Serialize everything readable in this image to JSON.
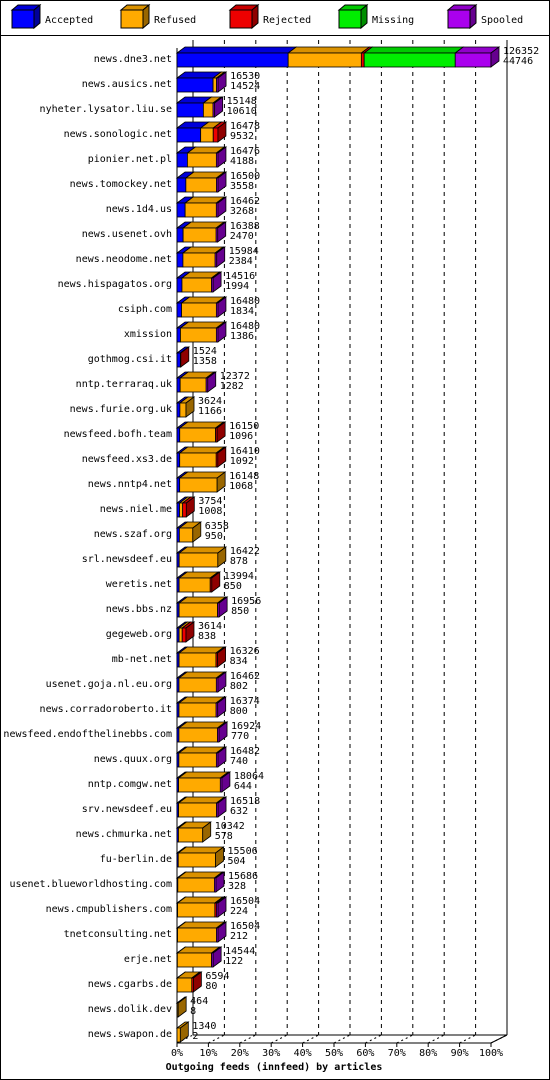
{
  "chart_data": {
    "type": "bar3d",
    "orientation": "horizontal",
    "stacked": true,
    "xlabel": "Outgoing feeds (innfeed) by articles",
    "categories": [
      "news.dne3.net",
      "news.ausics.net",
      "nyheter.lysator.liu.se",
      "news.sonologic.net",
      "pionier.net.pl",
      "news.tomockey.net",
      "news.1d4.us",
      "news.usenet.ovh",
      "news.neodome.net",
      "news.hispagatos.org",
      "csiph.com",
      "xmission",
      "gothmog.csi.it",
      "nntp.terraraq.uk",
      "news.furie.org.uk",
      "newsfeed.bofh.team",
      "newsfeed.xs3.de",
      "news.nntp4.net",
      "news.niel.me",
      "news.szaf.org",
      "srl.newsdeef.eu",
      "weretis.net",
      "news.bbs.nz",
      "gegeweb.org",
      "mb-net.net",
      "usenet.goja.nl.eu.org",
      "news.corradoroberto.it",
      "newsfeed.endofthelinebbs.com",
      "news.quux.org",
      "nntp.comgw.net",
      "srv.newsdeef.eu",
      "news.chmurka.net",
      "fu-berlin.de",
      "usenet.blueworldhosting.com",
      "news.cmpublishers.com",
      "tnetconsulting.net",
      "erje.net",
      "news.cgarbs.de",
      "news.dolik.dev",
      "news.swapon.de"
    ],
    "series": [
      {
        "name": "Accepted",
        "color": "#0000ff",
        "values": [
          35.41,
          11.49,
          8.4,
          7.54,
          3.31,
          2.82,
          2.59,
          1.95,
          1.89,
          1.58,
          1.45,
          1.1,
          1.07,
          1.01,
          0.92,
          0.87,
          0.86,
          0.85,
          0.8,
          0.75,
          0.69,
          0.67,
          0.67,
          0.66,
          0.66,
          0.63,
          0.63,
          0.61,
          0.59,
          0.51,
          0.5,
          0.46,
          0.4,
          0.26,
          0.18,
          0.17,
          0.1,
          0.06,
          0.01,
          0
        ]
      },
      {
        "name": "Refused",
        "color": "#ffaa00",
        "values": [
          23.3,
          1.09,
          3.09,
          4.0,
          9.23,
          9.74,
          9.94,
          10.52,
          10.26,
          9.41,
          11.09,
          11.44,
          0,
          8.28,
          1.95,
          11.41,
          11.63,
          11.93,
          1.0,
          4.28,
          12.31,
          9.91,
          12.25,
          1.0,
          11.76,
          11.9,
          11.83,
          12.28,
          11.95,
          13.29,
          12.07,
          7.73,
          11.87,
          11.65,
          11.88,
          12.39,
          10.91,
          4.66,
          0.36,
          1.06
        ]
      },
      {
        "name": "Rejected",
        "color": "#ee0000",
        "values": [
          0.9,
          0,
          0,
          1.5,
          0,
          0,
          0,
          0,
          0,
          0,
          0,
          0,
          0.14,
          0,
          0,
          0.5,
          0.5,
          0,
          1.17,
          0,
          0,
          0.5,
          0,
          1.2,
          0.5,
          0,
          0,
          0,
          0,
          0,
          0,
          0,
          0,
          0,
          0.5,
          0,
          0,
          0.5,
          0,
          0
        ]
      },
      {
        "name": "Missing",
        "color": "#00ee00",
        "values": [
          29.0,
          0,
          0,
          0,
          0,
          0,
          0,
          0,
          0,
          0,
          0,
          0,
          0,
          0,
          0,
          0,
          0,
          0,
          0,
          0,
          0,
          0,
          0,
          0,
          0,
          0,
          0,
          0,
          0,
          0,
          0,
          0,
          0,
          0,
          0,
          0,
          0,
          0,
          0,
          0
        ]
      },
      {
        "name": "Spooled",
        "color": "#aa00ee",
        "values": [
          11.39,
          0.5,
          0.5,
          0,
          0.5,
          0.5,
          0.5,
          0.5,
          0.5,
          0.5,
          0.5,
          0.5,
          0,
          0.5,
          0,
          0,
          0,
          0,
          0,
          0,
          0,
          0,
          0.5,
          0,
          0,
          0.5,
          0.5,
          0.5,
          0.5,
          0.5,
          0.5,
          0,
          0,
          0.5,
          0.5,
          0.5,
          0.5,
          0,
          0,
          0
        ]
      }
    ],
    "bar_labels": [
      [
        126352,
        44746
      ],
      [
        16530,
        14524
      ],
      [
        15148,
        10610
      ],
      [
        16478,
        9532
      ],
      [
        16476,
        4188
      ],
      [
        16500,
        3558
      ],
      [
        16462,
        3268
      ],
      [
        16388,
        2470
      ],
      [
        15984,
        2384
      ],
      [
        14516,
        1994
      ],
      [
        16480,
        1834
      ],
      [
        16480,
        1386
      ],
      [
        1524,
        1358
      ],
      [
        12372,
        1282
      ],
      [
        3624,
        1166
      ],
      [
        16150,
        1096
      ],
      [
        16410,
        1092
      ],
      [
        16148,
        1068
      ],
      [
        3754,
        1008
      ],
      [
        6358,
        950
      ],
      [
        16422,
        878
      ],
      [
        13994,
        850
      ],
      [
        16956,
        850
      ],
      [
        3614,
        838
      ],
      [
        16326,
        834
      ],
      [
        16462,
        802
      ],
      [
        16374,
        800
      ],
      [
        16924,
        770
      ],
      [
        16482,
        740
      ],
      [
        18064,
        644
      ],
      [
        16518,
        632
      ],
      [
        10342,
        578
      ],
      [
        15506,
        504
      ],
      [
        15686,
        328
      ],
      [
        16504,
        224
      ],
      [
        16504,
        212
      ],
      [
        14544,
        122
      ],
      [
        6594,
        80
      ],
      [
        464,
        8
      ],
      [
        1340,
        2
      ]
    ],
    "xlim": [
      0,
      100
    ],
    "xticks": [
      {
        "value": 0,
        "label": "0%"
      },
      {
        "value": 10,
        "label": "10%"
      },
      {
        "value": 20,
        "label": "20%"
      },
      {
        "value": 30,
        "label": "30%"
      },
      {
        "value": 40,
        "label": "40%"
      },
      {
        "value": 50,
        "label": "50%"
      },
      {
        "value": 60,
        "label": "60%"
      },
      {
        "value": 70,
        "label": "70%"
      },
      {
        "value": 80,
        "label": "80%"
      },
      {
        "value": 90,
        "label": "90%"
      },
      {
        "value": 100,
        "label": "100%"
      }
    ],
    "grid": true,
    "legend": "top"
  }
}
